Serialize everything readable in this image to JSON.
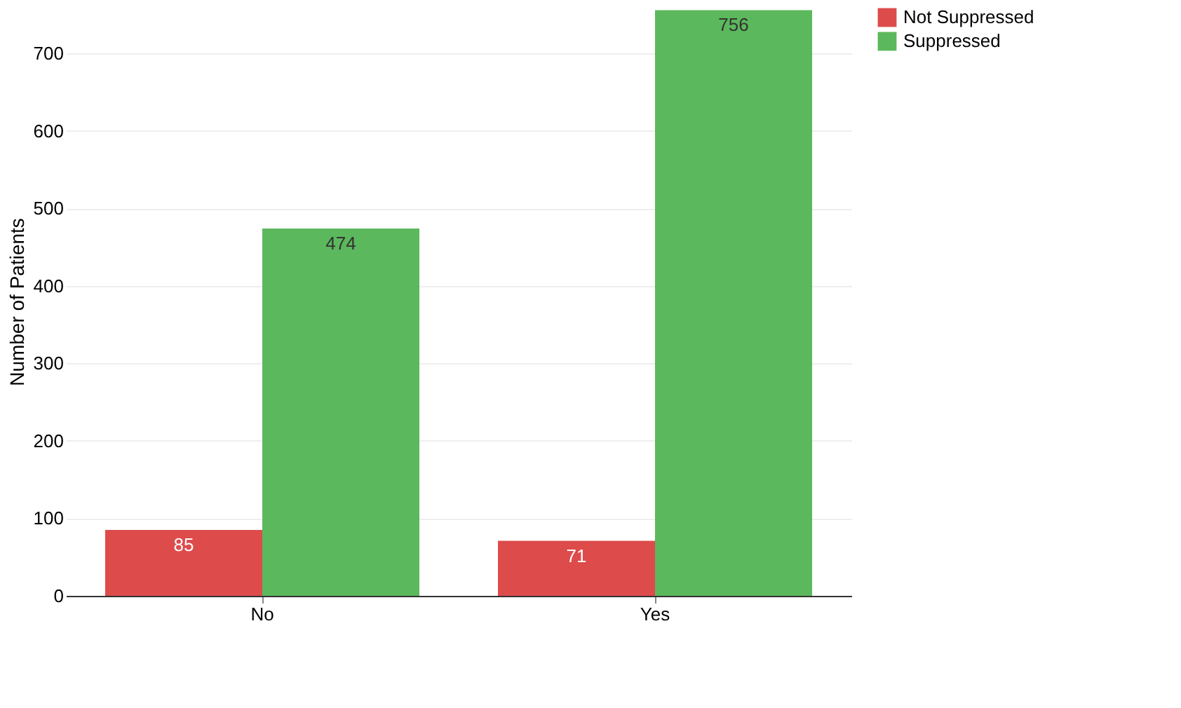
{
  "chart_data": {
    "type": "bar",
    "ylabel": "Number of Patients",
    "categories": [
      "No",
      "Yes"
    ],
    "series": [
      {
        "name": "Not Suppressed",
        "color": "#dd4b4b",
        "values": [
          85,
          71
        ]
      },
      {
        "name": "Suppressed",
        "color": "#5cb85c",
        "values": [
          474,
          756
        ]
      }
    ],
    "ylim": [
      0,
      760
    ],
    "yticks": [
      0,
      100,
      200,
      300,
      400,
      500,
      600,
      700
    ],
    "grid": "y",
    "legend": "right",
    "data_labels": true
  }
}
